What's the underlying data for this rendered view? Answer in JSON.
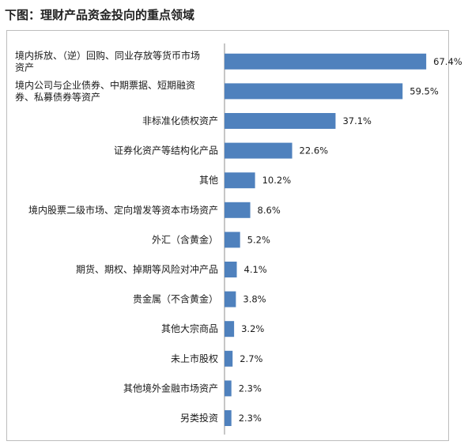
{
  "page": {
    "heading": "下图：理财产品资金投向的重点领域"
  },
  "chart_data": {
    "type": "bar",
    "orientation": "horizontal",
    "title": "",
    "xlabel": "",
    "ylabel": "",
    "unit": "%",
    "xlim": [
      0,
      70
    ],
    "grid": false,
    "bar_color": "#4f81bd",
    "categories": [
      [
        "境内拆放、（逆）回购、同业存放等货币市场",
        "资产"
      ],
      [
        "境内公司与企业债券、中期票据、短期融资",
        "券、私募债券等资产"
      ],
      [
        "非标准化债权资产"
      ],
      [
        "证券化资产等结构化产品"
      ],
      [
        "其他"
      ],
      [
        "境内股票二级市场、定向增发等资本市场资产"
      ],
      [
        "外汇（含黄金）"
      ],
      [
        "期货、期权、掉期等风险对冲产品"
      ],
      [
        "贵金属（不含黄金）"
      ],
      [
        "其他大宗商品"
      ],
      [
        "未上市股权"
      ],
      [
        "其他境外金融市场资产"
      ],
      [
        "另类投资"
      ]
    ],
    "values": [
      67.4,
      59.5,
      37.1,
      22.6,
      10.2,
      8.6,
      5.2,
      4.1,
      3.8,
      3.2,
      2.7,
      2.3,
      2.3
    ],
    "value_labels": [
      "67.4%",
      "59.5%",
      "37.1%",
      "22.6%",
      "10.2%",
      "8.6%",
      "5.2%",
      "4.1%",
      "3.8%",
      "3.2%",
      "2.7%",
      "2.3%",
      "2.3%"
    ]
  }
}
